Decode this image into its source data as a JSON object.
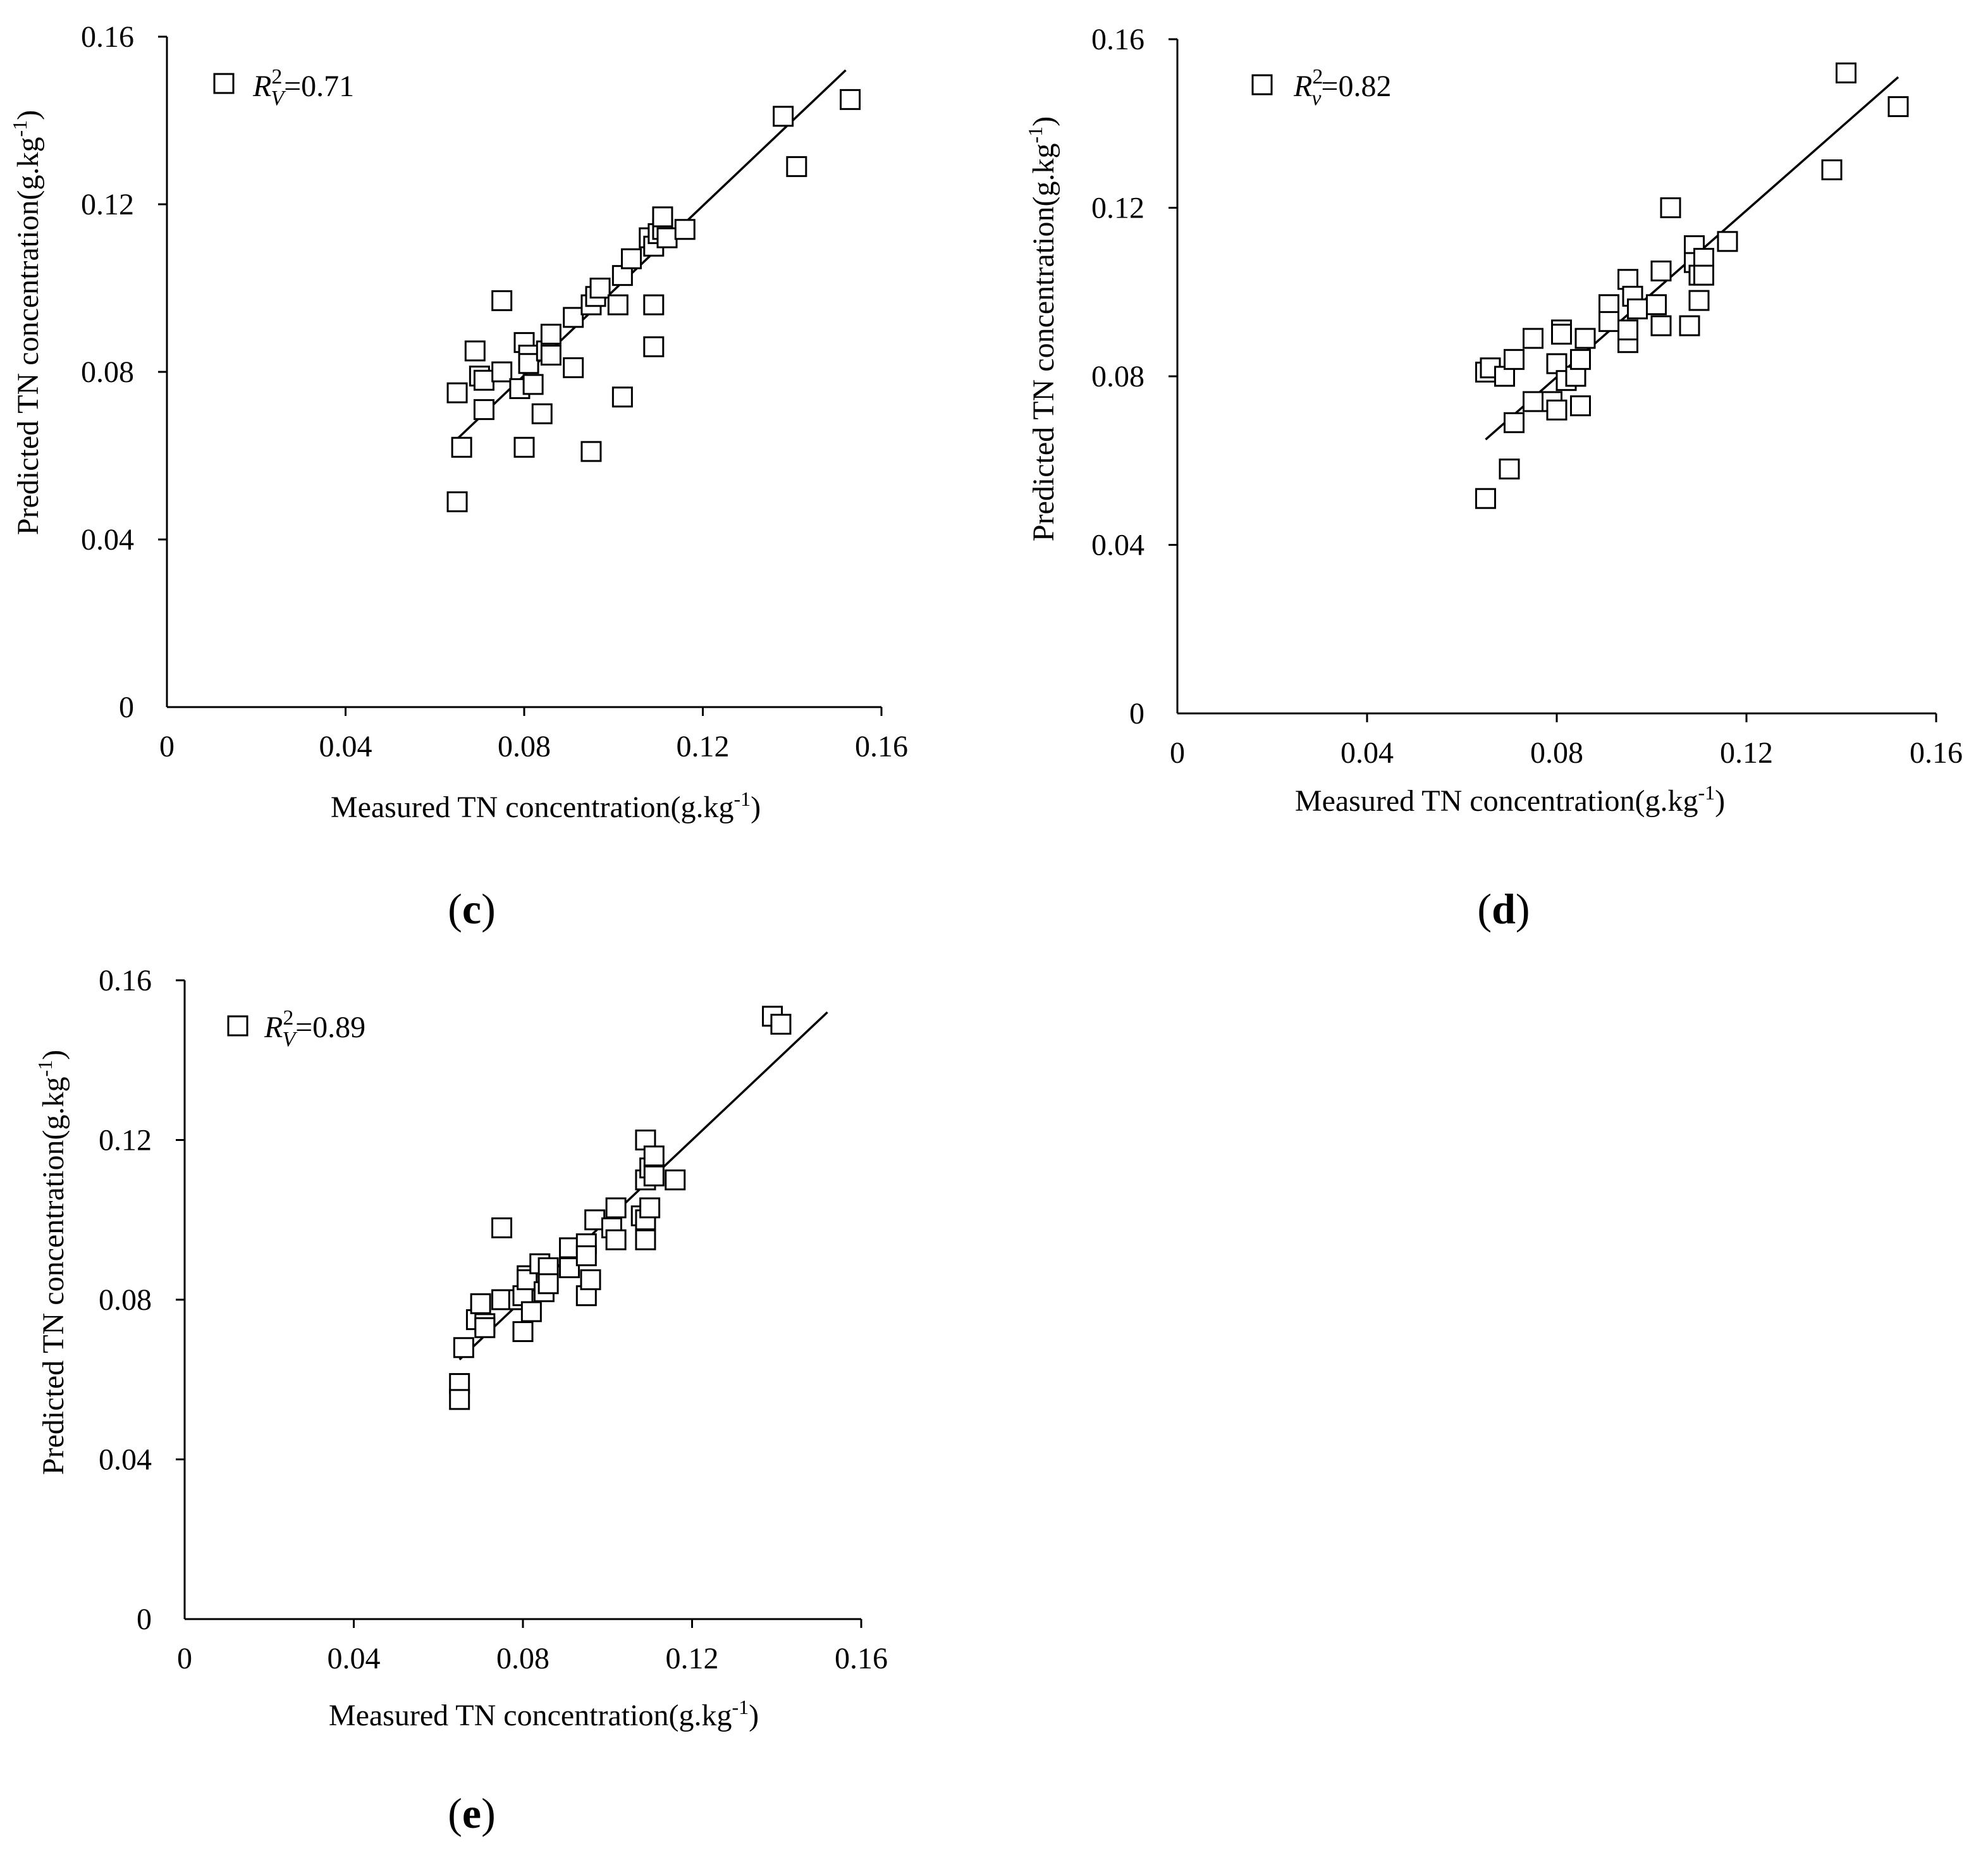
{
  "chart_data": [
    {
      "type": "scatter",
      "panel_label": "c",
      "xlabel_prefix": "Measured TN concentration(g.kg",
      "ylabel_prefix": "Predicted TN concentration(g.kg",
      "label_exponent": "-1",
      "label_suffix": ")",
      "xlim": [
        0,
        0.16
      ],
      "ylim": [
        0,
        0.16
      ],
      "xticks": [
        "0",
        "0.04",
        "0.08",
        "0.12",
        "0.16"
      ],
      "yticks": [
        "0",
        "0.04",
        "0.08",
        "0.12",
        "0.16"
      ],
      "tick_values": [
        0,
        0.04,
        0.08,
        0.12,
        0.16
      ],
      "legend": {
        "symbol": "R",
        "superscript": "2",
        "subscript": "V",
        "value": "=0.71",
        "placement": "top-left"
      },
      "fit_line": {
        "x": [
          0.065,
          0.152
        ],
        "y": [
          0.064,
          0.152
        ]
      },
      "points": [
        [
          0.065,
          0.075
        ],
        [
          0.065,
          0.049
        ],
        [
          0.066,
          0.062
        ],
        [
          0.069,
          0.085
        ],
        [
          0.07,
          0.079
        ],
        [
          0.071,
          0.078
        ],
        [
          0.071,
          0.071
        ],
        [
          0.075,
          0.097
        ],
        [
          0.075,
          0.08
        ],
        [
          0.079,
          0.076
        ],
        [
          0.08,
          0.087
        ],
        [
          0.08,
          0.062
        ],
        [
          0.081,
          0.084
        ],
        [
          0.081,
          0.082
        ],
        [
          0.082,
          0.077
        ],
        [
          0.084,
          0.07
        ],
        [
          0.085,
          0.085
        ],
        [
          0.086,
          0.089
        ],
        [
          0.086,
          0.084
        ],
        [
          0.091,
          0.093
        ],
        [
          0.091,
          0.081
        ],
        [
          0.095,
          0.096
        ],
        [
          0.095,
          0.061
        ],
        [
          0.096,
          0.098
        ],
        [
          0.097,
          0.1
        ],
        [
          0.101,
          0.096
        ],
        [
          0.102,
          0.103
        ],
        [
          0.102,
          0.074
        ],
        [
          0.104,
          0.107
        ],
        [
          0.108,
          0.112
        ],
        [
          0.109,
          0.11
        ],
        [
          0.109,
          0.096
        ],
        [
          0.109,
          0.086
        ],
        [
          0.11,
          0.113
        ],
        [
          0.111,
          0.114
        ],
        [
          0.111,
          0.117
        ],
        [
          0.112,
          0.112
        ],
        [
          0.116,
          0.114
        ],
        [
          0.138,
          0.141
        ],
        [
          0.141,
          0.129
        ],
        [
          0.153,
          0.145
        ]
      ]
    },
    {
      "type": "scatter",
      "panel_label": "d",
      "xlabel_prefix": "Measured TN concentration(g.kg",
      "ylabel_prefix": "Predicted TN concentration(g.kg",
      "label_exponent": "-1",
      "label_suffix": ")",
      "xlim": [
        0,
        0.16
      ],
      "ylim": [
        0,
        0.16
      ],
      "xticks": [
        "0",
        "0.04",
        "0.08",
        "0.12",
        "0.16"
      ],
      "yticks": [
        "0",
        "0.04",
        "0.08",
        "0.12",
        "0.16"
      ],
      "tick_values": [
        0,
        0.04,
        0.08,
        0.12,
        0.16
      ],
      "legend": {
        "symbol": "R",
        "superscript": "2",
        "subscript": "v",
        "value": "=0.82",
        "placement": "top-left"
      },
      "fit_line": {
        "x": [
          0.065,
          0.152
        ],
        "y": [
          0.065,
          0.151
        ]
      },
      "points": [
        [
          0.065,
          0.081
        ],
        [
          0.065,
          0.051
        ],
        [
          0.066,
          0.082
        ],
        [
          0.069,
          0.08
        ],
        [
          0.07,
          0.058
        ],
        [
          0.071,
          0.084
        ],
        [
          0.071,
          0.069
        ],
        [
          0.075,
          0.089
        ],
        [
          0.075,
          0.074
        ],
        [
          0.079,
          0.074
        ],
        [
          0.08,
          0.083
        ],
        [
          0.08,
          0.072
        ],
        [
          0.081,
          0.091
        ],
        [
          0.081,
          0.09
        ],
        [
          0.082,
          0.079
        ],
        [
          0.084,
          0.08
        ],
        [
          0.085,
          0.084
        ],
        [
          0.085,
          0.073
        ],
        [
          0.086,
          0.089
        ],
        [
          0.091,
          0.097
        ],
        [
          0.091,
          0.093
        ],
        [
          0.095,
          0.103
        ],
        [
          0.095,
          0.088
        ],
        [
          0.095,
          0.091
        ],
        [
          0.096,
          0.099
        ],
        [
          0.097,
          0.096
        ],
        [
          0.101,
          0.097
        ],
        [
          0.102,
          0.105
        ],
        [
          0.102,
          0.092
        ],
        [
          0.104,
          0.12
        ],
        [
          0.108,
          0.092
        ],
        [
          0.109,
          0.111
        ],
        [
          0.109,
          0.107
        ],
        [
          0.11,
          0.104
        ],
        [
          0.11,
          0.098
        ],
        [
          0.111,
          0.108
        ],
        [
          0.111,
          0.104
        ],
        [
          0.116,
          0.112
        ],
        [
          0.138,
          0.129
        ],
        [
          0.141,
          0.152
        ],
        [
          0.152,
          0.144
        ]
      ]
    },
    {
      "type": "scatter",
      "panel_label": "e",
      "xlabel_prefix": "Measured TN concentration(g.kg",
      "ylabel_prefix": "Predicted TN concentration(g.kg",
      "label_exponent": "-1",
      "label_suffix": ")",
      "xlim": [
        0,
        0.16
      ],
      "ylim": [
        0,
        0.16
      ],
      "xticks": [
        "0",
        "0.04",
        "0.08",
        "0.12",
        "0.16"
      ],
      "yticks": [
        "0",
        "0.04",
        "0.08",
        "0.12",
        "0.16"
      ],
      "tick_values": [
        0,
        0.04,
        0.08,
        0.12,
        0.16
      ],
      "legend": {
        "symbol": "R",
        "superscript": "2",
        "subscript": "V",
        "value": "=0.89",
        "placement": "top-left"
      },
      "fit_line": {
        "x": [
          0.065,
          0.152
        ],
        "y": [
          0.065,
          0.152
        ]
      },
      "points": [
        [
          0.065,
          0.059
        ],
        [
          0.065,
          0.055
        ],
        [
          0.066,
          0.068
        ],
        [
          0.069,
          0.075
        ],
        [
          0.07,
          0.079
        ],
        [
          0.071,
          0.074
        ],
        [
          0.071,
          0.073
        ],
        [
          0.075,
          0.098
        ],
        [
          0.075,
          0.08
        ],
        [
          0.079,
          0.08
        ],
        [
          0.08,
          0.081
        ],
        [
          0.08,
          0.072
        ],
        [
          0.081,
          0.086
        ],
        [
          0.081,
          0.085
        ],
        [
          0.082,
          0.077
        ],
        [
          0.084,
          0.089
        ],
        [
          0.085,
          0.082
        ],
        [
          0.086,
          0.088
        ],
        [
          0.086,
          0.084
        ],
        [
          0.091,
          0.093
        ],
        [
          0.091,
          0.088
        ],
        [
          0.095,
          0.094
        ],
        [
          0.095,
          0.081
        ],
        [
          0.095,
          0.091
        ],
        [
          0.096,
          0.085
        ],
        [
          0.097,
          0.1
        ],
        [
          0.101,
          0.098
        ],
        [
          0.102,
          0.103
        ],
        [
          0.102,
          0.095
        ],
        [
          0.108,
          0.101
        ],
        [
          0.109,
          0.12
        ],
        [
          0.109,
          0.11
        ],
        [
          0.109,
          0.1
        ],
        [
          0.109,
          0.095
        ],
        [
          0.11,
          0.103
        ],
        [
          0.11,
          0.113
        ],
        [
          0.111,
          0.116
        ],
        [
          0.111,
          0.111
        ],
        [
          0.116,
          0.11
        ],
        [
          0.139,
          0.151
        ],
        [
          0.141,
          0.149
        ]
      ]
    }
  ]
}
